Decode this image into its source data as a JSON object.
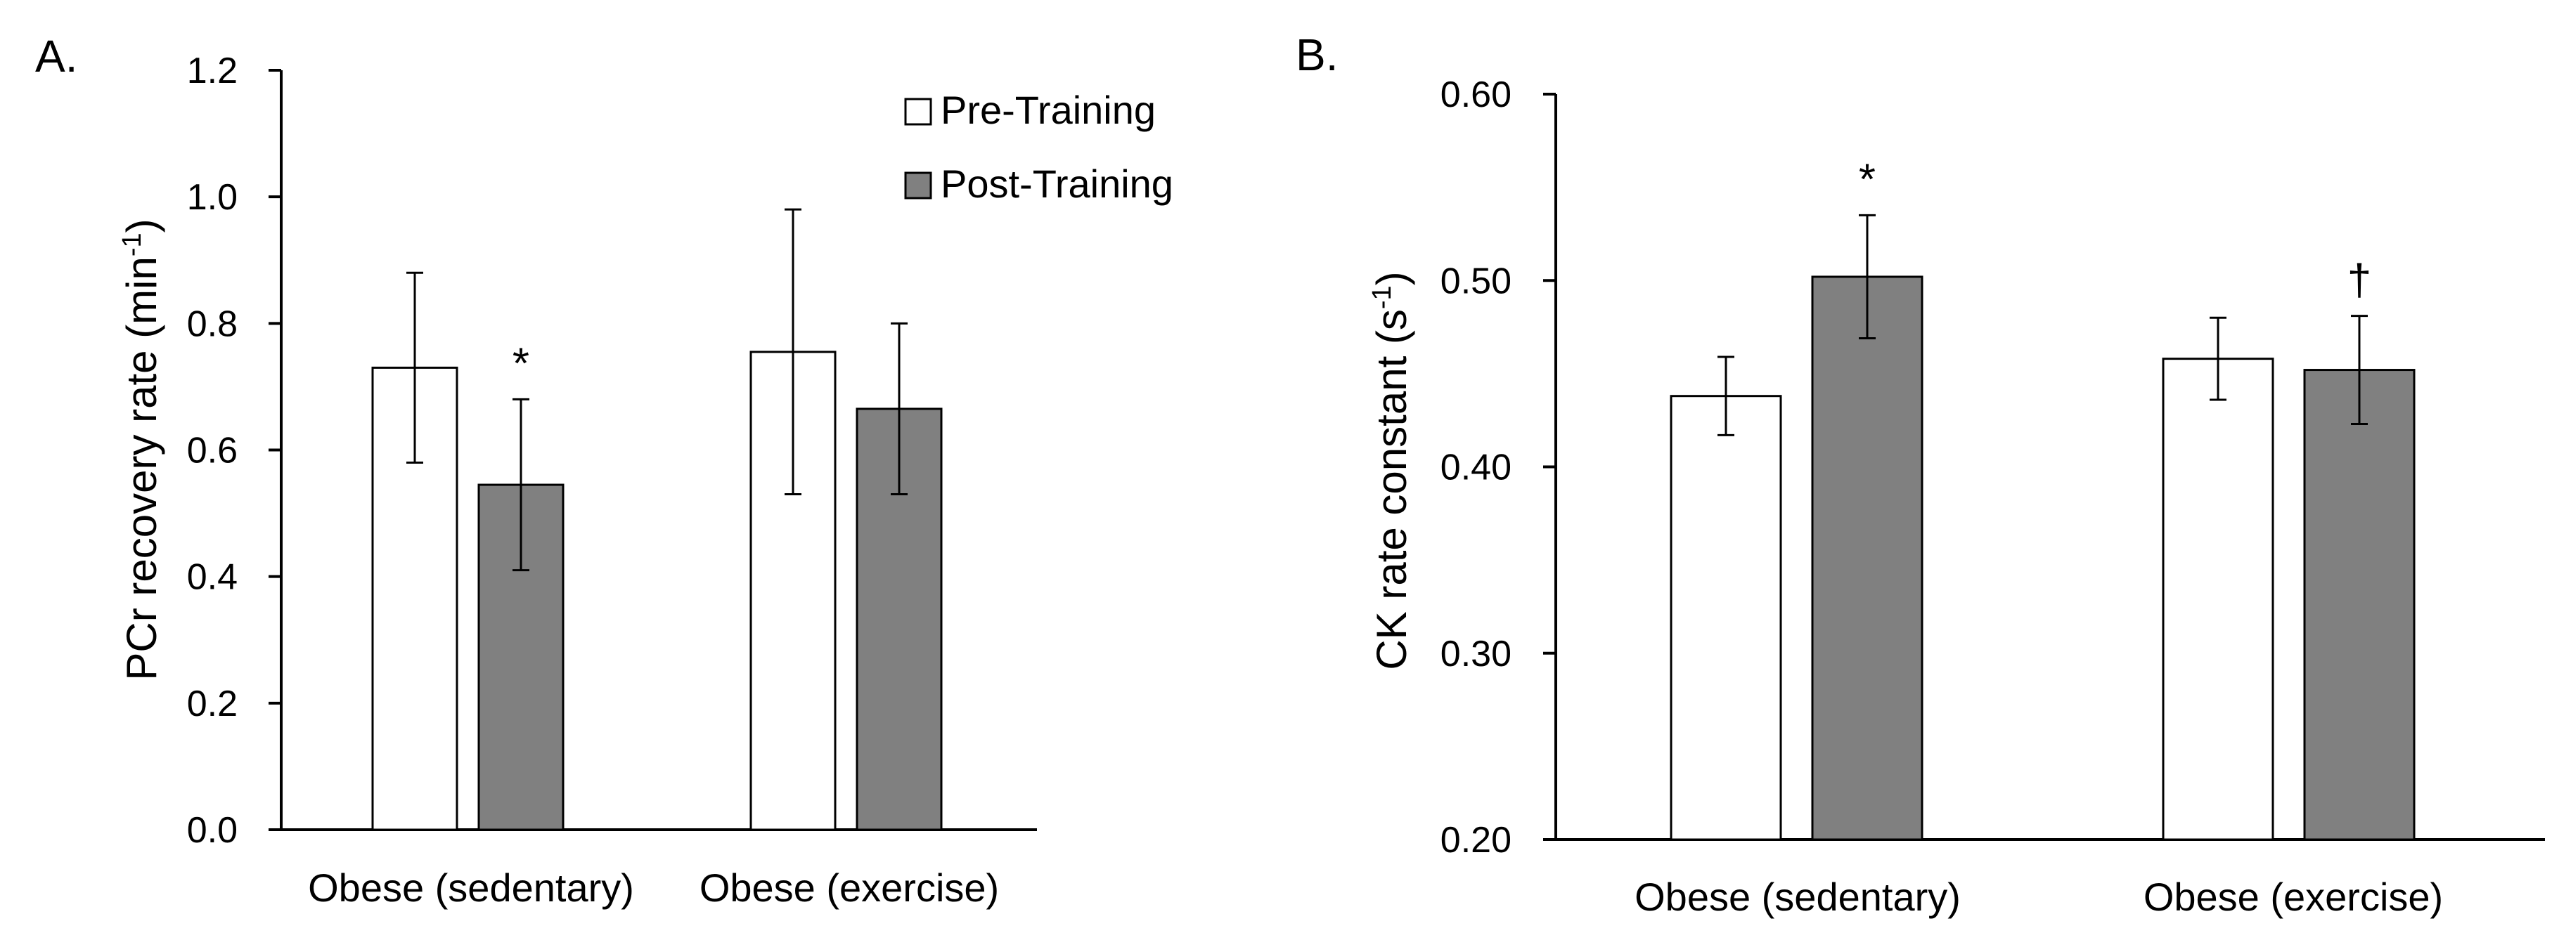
{
  "colors": {
    "pre": "#ffffff",
    "post": "#808080",
    "stroke": "#000000"
  },
  "chart_data": [
    {
      "type": "bar",
      "panel_label": "A.",
      "ylabel": "PCr recovery rate (min",
      "ylabel_sup": "-1",
      "ylabel_end": ")",
      "categories": [
        "Obese (sedentary)",
        "Obese (exercise)"
      ],
      "series": [
        {
          "name": "Pre-Training",
          "values": [
            0.73,
            0.755
          ],
          "errors": [
            0.15,
            0.225
          ]
        },
        {
          "name": "Post-Training",
          "values": [
            0.545,
            0.665
          ],
          "errors": [
            0.135,
            0.135
          ]
        }
      ],
      "ylim": [
        0.0,
        1.2
      ],
      "yticks": [
        "0.0",
        "0.2",
        "0.4",
        "0.6",
        "0.8",
        "1.0",
        "1.2"
      ],
      "annotations": [
        {
          "series": 1,
          "category": 0,
          "text": "*"
        }
      ],
      "legend": {
        "position": "top-right",
        "entries": [
          "Pre-Training",
          "Post-Training"
        ]
      }
    },
    {
      "type": "bar",
      "panel_label": "B.",
      "ylabel": "CK rate constant (s",
      "ylabel_sup": "-1",
      "ylabel_end": ")",
      "categories": [
        "Obese (sedentary)",
        "Obese (exercise)"
      ],
      "series": [
        {
          "name": "Pre-Training",
          "values": [
            0.438,
            0.458
          ],
          "errors": [
            0.021,
            0.022
          ]
        },
        {
          "name": "Post-Training",
          "values": [
            0.502,
            0.452
          ],
          "errors": [
            0.033,
            0.029
          ]
        }
      ],
      "ylim": [
        0.2,
        0.6
      ],
      "yticks": [
        "0.20",
        "0.30",
        "0.40",
        "0.50",
        "0.60"
      ],
      "annotations": [
        {
          "series": 1,
          "category": 0,
          "text": "*"
        },
        {
          "series": 1,
          "category": 1,
          "text": "†"
        }
      ]
    }
  ]
}
